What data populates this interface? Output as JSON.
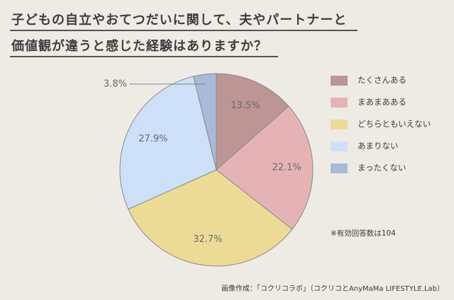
{
  "title": {
    "line1": "子どもの自立やおてつだいに関して、夫やパートナーと",
    "line2": "価値観が違うと感じた経験はありますか？"
  },
  "chart_data": {
    "type": "pie",
    "categories": [
      "たくさんある",
      "まあまあある",
      "どちらともいえない",
      "あまりない",
      "まったくない"
    ],
    "values": [
      13.5,
      22.1,
      32.7,
      27.9,
      3.8
    ],
    "value_labels": [
      "13.5%",
      "22.1%",
      "32.7%",
      "27.9%",
      "3.8%"
    ],
    "colors": [
      "#bc9594",
      "#e5b3b6",
      "#ecdb96",
      "#cde0f8",
      "#a9bad8"
    ],
    "start": "12 o'clock",
    "direction": "clockwise",
    "legend_position": "right"
  },
  "legend": {
    "items": [
      "たくさんある",
      "まあまあある",
      "どちらともいえない",
      "あまりない",
      "まったくない"
    ]
  },
  "note": "※有効回答数は104",
  "credit": "画像作成：「コクリコラボ」（コクリコとAnyMaMa LIFESTYLE.Lab）"
}
